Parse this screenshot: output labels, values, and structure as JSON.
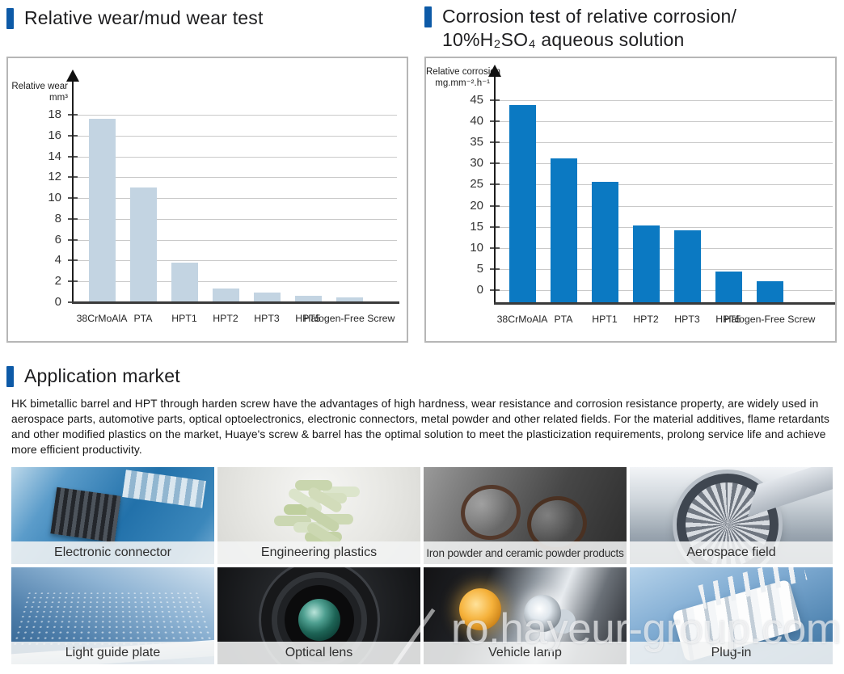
{
  "accent_color": "#0d5aa7",
  "titles": {
    "wear": "Relative wear/mud wear test",
    "corrosion_line1": "Corrosion test of relative corrosion/",
    "corrosion_line2": "10%H₂SO₄ aqueous solution",
    "application": "Application market"
  },
  "application": {
    "paragraph": "HK bimetallic barrel and HPT through harden screw have the advantages of high hardness, wear resistance and corrosion resistance property, are widely used in aerospace parts, automotive parts, optical optoelectronics, electronic connectors, metal powder and other related fields. For the material additives, flame retardants and other modified plastics on the market, Huaye's screw & barrel has the optimal solution to meet the plasticization requirements, prolong service life and achieve more efficient productivity.",
    "tiles": [
      {
        "label": "Electronic connector",
        "art": "circuit"
      },
      {
        "label": "Engineering plastics",
        "art": "pellets"
      },
      {
        "label": "Iron powder and ceramic powder products",
        "art": "glasses"
      },
      {
        "label": "Aerospace field",
        "art": "engine"
      },
      {
        "label": "Light guide plate",
        "art": "lightplate"
      },
      {
        "label": "Optical lens",
        "art": "lens"
      },
      {
        "label": "Vehicle lamp",
        "art": "headlamp"
      },
      {
        "label": "Plug-in",
        "art": "plug"
      }
    ]
  },
  "chart_data": [
    {
      "type": "bar",
      "title": "Relative wear/mud wear test",
      "ylabel_line1": "Relative wear",
      "ylabel_line2": "mm³",
      "categories": [
        "38CrMoAlA",
        "PTA",
        "HPT1",
        "HPT2",
        "HPT3",
        "HPT5",
        "Halogen-Free Screw"
      ],
      "values": [
        17.6,
        11,
        3.8,
        1.3,
        0.9,
        0.65,
        0.5
      ],
      "xlabel": "",
      "ylabel": "Relative wear mm³",
      "ylim": [
        0,
        18
      ],
      "ystep": 2,
      "grid": true,
      "legend_position": "none",
      "bar_color": "#c3d4e2"
    },
    {
      "type": "bar",
      "title": "Corrosion test of relative corrosion/10%H₂SO₄ aqueous solution",
      "ylabel_line1": "Relative corrosion",
      "ylabel_line2": "mg.mm⁻².h⁻¹",
      "categories": [
        "38CrMoAlA",
        "PTA",
        "HPT1",
        "HPT2",
        "HPT3",
        "HPT5",
        "Halogen-Free Screw"
      ],
      "values": [
        43.8,
        31.2,
        25.6,
        15.4,
        14.2,
        4.5,
        2.2
      ],
      "xlabel": "",
      "ylabel": "Relative corrosion mg.mm⁻².h⁻¹",
      "ylim": [
        0,
        45
      ],
      "ystep": 5,
      "grid": true,
      "legend_position": "none",
      "bar_color": "#0b79c2"
    }
  ],
  "watermark": {
    "text": "ro.hayeur-group.com"
  }
}
